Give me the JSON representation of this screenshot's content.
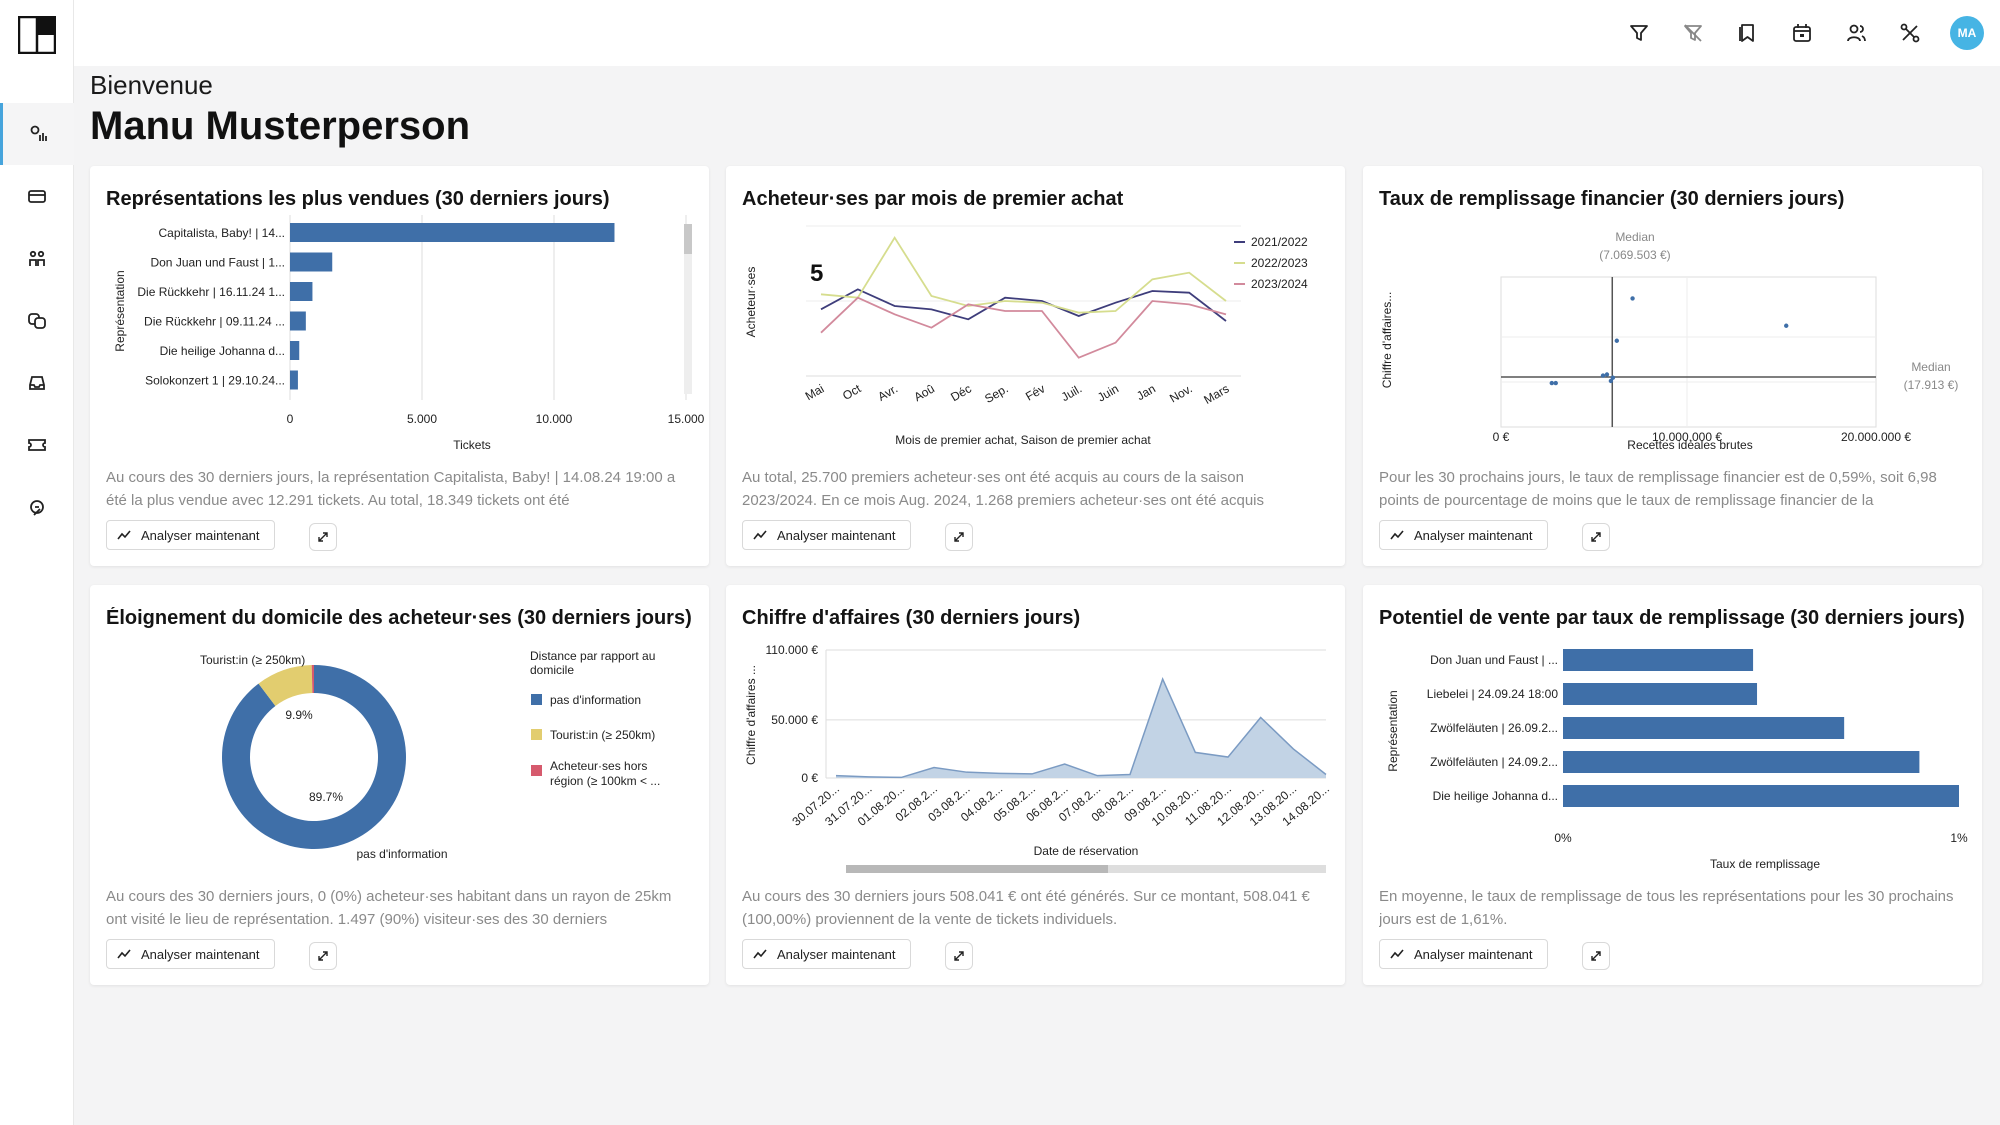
{
  "header": {
    "greeting": "Bienvenue",
    "user_name": "Manu Musterperson",
    "avatar_initials": "MA"
  },
  "theme": {
    "accent": "#46a4dc",
    "bar": "#3f6fa8",
    "series_colors": [
      "#3e3d7b",
      "#d6dd8e",
      "#d28a9c"
    ]
  },
  "sidebar": {
    "items": [
      {
        "icon": "analytics-icon",
        "active": true
      },
      {
        "icon": "card-icon"
      },
      {
        "icon": "people-icon"
      },
      {
        "icon": "theater-masks-icon"
      },
      {
        "icon": "inbox-icon"
      },
      {
        "icon": "ticket-icon"
      },
      {
        "icon": "compass-icon"
      }
    ]
  },
  "topbar": {
    "icons": [
      "filter-icon",
      "clear-filter-icon",
      "bookmarks-icon",
      "calendar-icon",
      "users-icon",
      "tools-icon"
    ]
  },
  "buttons": {
    "analyze_label": "Analyser maintenant"
  },
  "cards": [
    {
      "title": "Représentations les plus vendues (30 derniers jours)",
      "text": "Au cours des 30 derniers jours, la représentation Capitalista, Baby! | 14.08.24 19:00 a été la plus vendue avec 12.291 tickets. Au total, 18.349 tickets ont été",
      "chart_data": {
        "type": "bar",
        "orientation": "horizontal",
        "categories": [
          "Capitalista, Baby! | 14...",
          "Don Juan und Faust | 1...",
          "Die Rückkehr | 16.11.24 1...",
          "Die Rückkehr | 09.11.24 ...",
          "Die heilige Johanna d...",
          "Solokonzert 1 | 29.10.24..."
        ],
        "values": [
          12291,
          1600,
          850,
          600,
          350,
          300
        ],
        "xticks": [
          "0",
          "5.000",
          "10.000",
          "15.000"
        ],
        "xlim": [
          0,
          15000
        ],
        "xlabel": "Tickets",
        "ylabel": "Représentation"
      }
    },
    {
      "title": "Acheteur·ses par mois de premier achat",
      "text": "Au total, 25.700 premiers acheteur·ses ont été acquis au cours de la saison 2023/2024. En ce mois Aug. 2024, 1.268 premiers acheteur·ses ont été acquis",
      "chart_data": {
        "type": "line",
        "categories": [
          "Mai",
          "Oct",
          "Avr.",
          "Aoû",
          "Déc",
          "Sep.",
          "Fév",
          "Juil.",
          "Juin",
          "Jan",
          "Nov.",
          "Mars"
        ],
        "series": [
          {
            "name": "2021/2022",
            "values": [
              4.0,
              5.2,
              4.2,
              4.0,
              3.4,
              4.7,
              4.5,
              3.6,
              4.4,
              5.1,
              5.0,
              3.3
            ]
          },
          {
            "name": "2022/2023",
            "values": [
              4.9,
              4.7,
              8.3,
              4.8,
              4.2,
              4.5,
              4.4,
              3.8,
              3.9,
              5.8,
              6.2,
              4.5
            ]
          },
          {
            "name": "2023/2024",
            "values": [
              2.6,
              4.7,
              3.7,
              2.9,
              4.3,
              3.9,
              3.9,
              1.1,
              2.0,
              4.5,
              4.3,
              3.7
            ]
          }
        ],
        "xlabel": "Mois de premier achat, Saison de premier achat",
        "ylabel": "Acheteur·ses",
        "legend": "top-right"
      }
    },
    {
      "title": "Taux de remplissage financier (30 derniers jours)",
      "text": "Pour les 30 prochains jours, le taux de remplissage financier est de 0,59%, soit 6,98 points de pourcentage de moins que le taux de remplissage financier de la",
      "chart_data": {
        "type": "scatter",
        "points": [
          [
            4000000,
            200
          ],
          [
            4200000,
            200
          ],
          [
            6600000,
            1600
          ],
          [
            6800000,
            1800
          ],
          [
            7000000,
            600
          ],
          [
            7100000,
            1200
          ],
          [
            7300000,
            8100
          ],
          [
            8100000,
            16000
          ],
          [
            15900000,
            10900
          ]
        ],
        "xticks": [
          "0 €",
          "10.000.000 €",
          "20.000.000 €"
        ],
        "xlim": [
          0,
          20000000
        ],
        "ylim": [
          -8000,
          20000
        ],
        "xlabel": "Recettes idéales brutes",
        "ylabel": "Chiffre d'affaires...",
        "median_x_label": "Median",
        "median_x_value": "(7.069.503 €)",
        "median_y_label": "Median",
        "median_y_value": "(17.913 €)"
      }
    },
    {
      "title": "Éloignement du domicile des acheteur·ses (30 derniers jours)",
      "text": "Au cours des 30 derniers jours, 0 (0%) acheteur·ses habitant dans un rayon de 25km ont visité le lieu de représentation. 1.497 (90%) visiteur·ses des 30 derniers",
      "chart_data": {
        "type": "pie",
        "slices": [
          {
            "label": "pas d'information",
            "value": 89.7,
            "color": "#3f6fa8"
          },
          {
            "label": "Touristin (≥ 250km)",
            "value": 9.9,
            "color": "#e2cd6f"
          },
          {
            "label": "Acheteur·ses hors région (≥ 100km < ...",
            "value": 0.4,
            "color": "#d65a6d"
          }
        ],
        "slice_labels": [
          "89.7%",
          "9.9%"
        ],
        "outer_labels": [
          "pas d'information",
          "Tourist:in  (≥ 250km)"
        ],
        "legend_title": "Distance par rapport au domicile",
        "legend": "right"
      }
    },
    {
      "title": "Chiffre d'affaires (30 derniers jours)",
      "text": "Au cours des 30 derniers jours 508.041 € ont été générés. Sur ce montant, 508.041 € (100,00%) proviennent de la vente de tickets individuels.",
      "chart_data": {
        "type": "area",
        "categories": [
          "30.07.20...",
          "31.07.20...",
          "01.08.20...",
          "02.08.2...",
          "03.08.2...",
          "04.08.2...",
          "05.08.2...",
          "06.08.2...",
          "07.08.2...",
          "08.08.2...",
          "09.08.2...",
          "10.08.20...",
          "11.08.20...",
          "12.08.20...",
          "13.08.20...",
          "14.08.20..."
        ],
        "values": [
          2000,
          1000,
          500,
          9000,
          5000,
          4000,
          3500,
          12000,
          2000,
          3000,
          85000,
          22000,
          18000,
          52000,
          25000,
          3000
        ],
        "yticks": [
          "110.000 €",
          "50.000 €",
          "0 €"
        ],
        "ylim": [
          0,
          110000
        ],
        "xlabel": "Date de réservation",
        "ylabel": "Chiffre d'affaires ..."
      }
    },
    {
      "title": "Potentiel de vente par taux de remplissage (30 derniers jours)",
      "text": "En moyenne, le taux de remplissage de tous les représentations pour les 30 prochains jours est de 1,61%.",
      "chart_data": {
        "type": "bar",
        "orientation": "horizontal",
        "categories": [
          "Don Juan und Faust | ...",
          "Liebelei | 24.09.24 18:00",
          "Zwölfeläuten | 26.09.2...",
          "Zwölfeläuten | 24.09.2...",
          "Die heilige Johanna d..."
        ],
        "values": [
          0.48,
          0.49,
          0.71,
          0.9,
          1.0
        ],
        "xticks": [
          "0%",
          "1%"
        ],
        "xlim": [
          0,
          1
        ],
        "xlabel": "Taux de remplissage",
        "ylabel": "Représentation"
      }
    }
  ]
}
